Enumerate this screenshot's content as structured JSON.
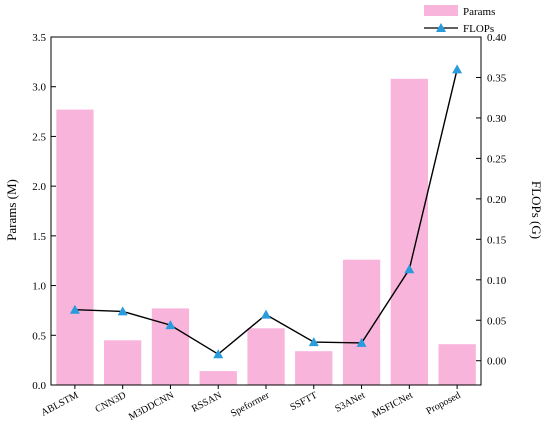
{
  "chart_data": {
    "type": "bar+line",
    "categories": [
      "ABLSTM",
      "CNN3D",
      "M3DDCNN",
      "RSSAN",
      "Speformer",
      "SSFTT",
      "S3ANet",
      "MSFICNet",
      "Proposed"
    ],
    "series": [
      {
        "name": "Params",
        "type": "bar",
        "axis": "left",
        "color": "#F9B4DC",
        "values": [
          2.77,
          0.45,
          0.77,
          0.14,
          0.57,
          0.34,
          1.26,
          3.08,
          0.41
        ]
      },
      {
        "name": "FLOPs",
        "type": "line",
        "axis": "right",
        "color": "#000000",
        "marker_color": "#2A9BDC",
        "marker": "triangle",
        "values": [
          0.063,
          0.061,
          0.044,
          0.008,
          0.057,
          0.023,
          0.022,
          0.113,
          0.36
        ]
      }
    ],
    "ylabel": "Params (M)",
    "y2label": "FLOPs (G)",
    "ylim": [
      0,
      3.5
    ],
    "yticks": [
      "0.0",
      "0.5",
      "1.0",
      "1.5",
      "2.0",
      "2.5",
      "3.0",
      "3.5"
    ],
    "y2lim": [
      -0.03,
      0.4
    ],
    "y2ticks": [
      "0.00",
      "0.05",
      "0.10",
      "0.15",
      "0.20",
      "0.25",
      "0.30",
      "0.35",
      "0.40"
    ],
    "legend": [
      "Params",
      "FLOPs"
    ],
    "legend_position": "top-right",
    "grid": false
  }
}
